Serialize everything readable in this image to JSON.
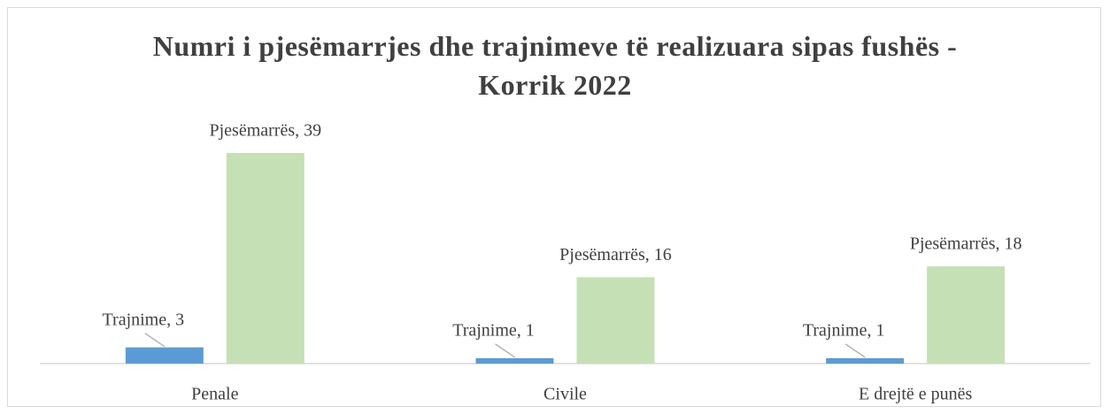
{
  "chart_data": {
    "type": "bar",
    "title": "Numri i pjesëmarrjes dhe trajnimeve të realizuara sipas fushës - Korrik 2022",
    "categories": [
      "Penale",
      "Civile",
      "E drejtë e punës"
    ],
    "series": [
      {
        "name": "Trajnime",
        "color": "#5b9bd5",
        "values": [
          3,
          1,
          1
        ],
        "value_labels": [
          "Trajnime, 3",
          "Trajnime, 1",
          "Trajnime, 1"
        ]
      },
      {
        "name": "Pjesëmarrës",
        "color": "#c5e0b4",
        "values": [
          39,
          16,
          18
        ],
        "value_labels": [
          "Pjesëmarrës, 39",
          "Pjesëmarrës, 16",
          "Pjesëmarrës, 18"
        ]
      }
    ]
  }
}
